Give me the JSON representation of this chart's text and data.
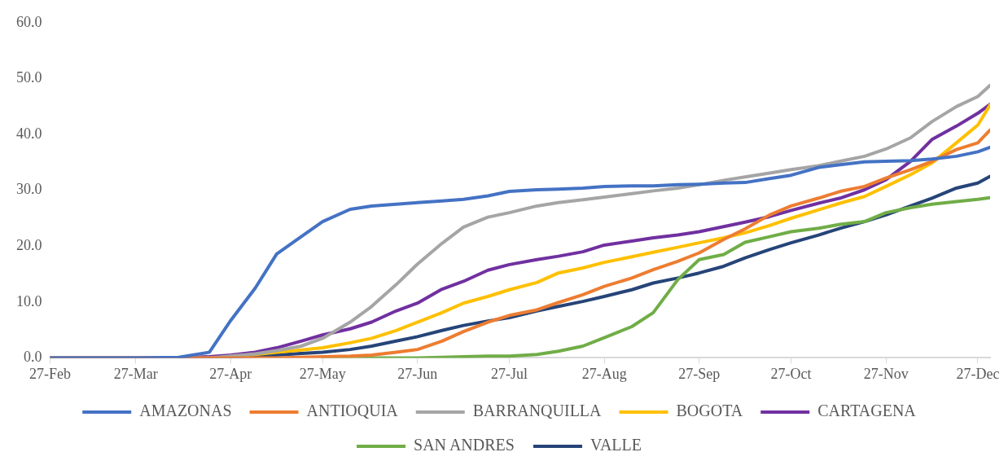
{
  "chart_data": {
    "type": "line",
    "x": [
      "--02-27",
      "--03-27",
      "--04-10",
      "--04-20",
      "--04-27",
      "--05-05",
      "--05-12",
      "--05-20",
      "--05-27",
      "--06-05",
      "--06-12",
      "--06-20",
      "--06-27",
      "--07-05",
      "--07-12",
      "--07-20",
      "--07-27",
      "--08-05",
      "--08-12",
      "--08-20",
      "--08-27",
      "--09-05",
      "--09-12",
      "--09-20",
      "--09-27",
      "--10-05",
      "--10-12",
      "--10-20",
      "--10-27",
      "--11-05",
      "--11-12",
      "--11-20",
      "--11-27",
      "--12-05",
      "--12-12",
      "--12-20",
      "--12-27",
      "--12-31"
    ],
    "series": [
      {
        "name": "AMAZONAS",
        "color": "#4472c4",
        "values": [
          0,
          0,
          0.1,
          1.0,
          6.7,
          12.5,
          18.6,
          21.7,
          24.4,
          26.6,
          27.2,
          27.5,
          27.8,
          28.1,
          28.4,
          29.0,
          29.8,
          30.1,
          30.2,
          30.4,
          30.7,
          30.8,
          30.8,
          31.0,
          31.1,
          31.3,
          31.4,
          32.1,
          32.7,
          34.1,
          34.6,
          35.1,
          35.2,
          35.3,
          35.6,
          36.1,
          36.9,
          37.7
        ]
      },
      {
        "name": "ANTIOQUIA",
        "color": "#ed7d31",
        "values": [
          0,
          0,
          0,
          0,
          0,
          0,
          0,
          0.1,
          0.2,
          0.3,
          0.5,
          1.0,
          1.5,
          3.0,
          4.7,
          6.4,
          7.6,
          8.6,
          9.9,
          11.3,
          12.8,
          14.3,
          15.8,
          17.3,
          18.8,
          21.2,
          23.1,
          25.6,
          27.2,
          28.6,
          29.8,
          30.7,
          32.2,
          33.7,
          35.2,
          37.3,
          38.5,
          40.8
        ]
      },
      {
        "name": "BARRANQUILLA",
        "color": "#a5a5a5",
        "values": [
          0,
          0,
          0,
          0,
          0.3,
          0.7,
          1.3,
          2.1,
          3.5,
          6.4,
          9.2,
          13.1,
          16.8,
          20.5,
          23.4,
          25.2,
          26.0,
          27.2,
          27.8,
          28.3,
          28.8,
          29.4,
          29.9,
          30.4,
          31.0,
          31.8,
          32.4,
          33.1,
          33.7,
          34.4,
          35.2,
          36.1,
          37.4,
          39.4,
          42.3,
          45.0,
          46.8,
          48.8
        ]
      },
      {
        "name": "BOGOTA",
        "color": "#ffc000",
        "values": [
          null,
          null,
          null,
          null,
          0.3,
          0.6,
          1.0,
          1.4,
          1.8,
          2.7,
          3.5,
          4.9,
          6.4,
          8.1,
          9.8,
          11.0,
          12.2,
          13.5,
          15.2,
          16.1,
          17.1,
          18.1,
          18.9,
          19.8,
          20.6,
          21.5,
          22.4,
          23.7,
          25.0,
          26.5,
          27.7,
          28.9,
          30.7,
          32.8,
          34.9,
          38.5,
          41.7,
          45.3
        ]
      },
      {
        "name": "CARTAGENA",
        "color": "#7030a0",
        "values": [
          null,
          null,
          0,
          0.2,
          0.5,
          1.0,
          1.8,
          3.0,
          4.1,
          5.2,
          6.4,
          8.4,
          9.8,
          12.3,
          13.7,
          15.7,
          16.7,
          17.6,
          18.2,
          19.0,
          20.2,
          20.9,
          21.5,
          22.0,
          22.6,
          23.5,
          24.3,
          25.3,
          26.4,
          27.7,
          28.6,
          30.1,
          31.9,
          35.2,
          39.1,
          41.5,
          43.8,
          45.4
        ]
      },
      {
        "name": "SAN ANDRES",
        "color": "#70ad47",
        "values": [
          null,
          null,
          null,
          null,
          null,
          null,
          null,
          null,
          0,
          0,
          0,
          0,
          0,
          0.1,
          0.2,
          0.3,
          0.3,
          0.6,
          1.2,
          2.1,
          3.6,
          5.6,
          8.1,
          14.0,
          17.6,
          18.5,
          20.7,
          21.7,
          22.6,
          23.2,
          23.9,
          24.4,
          26.0,
          26.9,
          27.5,
          28.0,
          28.4,
          28.7
        ]
      },
      {
        "name": "VALLE",
        "color": "#264478",
        "values": [
          0,
          0,
          0,
          0.1,
          0.2,
          0.3,
          0.5,
          0.8,
          1.0,
          1.5,
          2.1,
          3.0,
          3.8,
          4.9,
          5.8,
          6.6,
          7.2,
          8.4,
          9.2,
          10.1,
          11.0,
          12.2,
          13.4,
          14.3,
          15.2,
          16.4,
          17.9,
          19.4,
          20.6,
          22.0,
          23.2,
          24.4,
          25.6,
          27.2,
          28.6,
          30.4,
          31.3,
          32.5
        ]
      }
    ],
    "xlim": [
      "--02-27",
      "--12-31"
    ],
    "xticks": [
      {
        "value": "--02-27",
        "label": "27-Feb"
      },
      {
        "value": "--03-27",
        "label": "27-Mar"
      },
      {
        "value": "--04-27",
        "label": "27-Apr"
      },
      {
        "value": "--05-27",
        "label": "27-May"
      },
      {
        "value": "--06-27",
        "label": "27-Jun"
      },
      {
        "value": "--07-27",
        "label": "27-Jul"
      },
      {
        "value": "--08-27",
        "label": "27-Aug"
      },
      {
        "value": "--09-27",
        "label": "27-Sep"
      },
      {
        "value": "--10-27",
        "label": "27-Oct"
      },
      {
        "value": "--11-27",
        "label": "27-Nov"
      },
      {
        "value": "--12-27",
        "label": "27-Dec"
      }
    ],
    "ylim": [
      0,
      60
    ],
    "yticks": [
      {
        "value": 0,
        "label": "0.0"
      },
      {
        "value": 10,
        "label": "10.0"
      },
      {
        "value": 20,
        "label": "20.0"
      },
      {
        "value": 30,
        "label": "30.0"
      },
      {
        "value": 40,
        "label": "40.0"
      },
      {
        "value": 50,
        "label": "50.0"
      },
      {
        "value": 60,
        "label": "60.0"
      }
    ],
    "grid": false,
    "legend": "bottom",
    "marker": "none",
    "line_style": "solid"
  }
}
